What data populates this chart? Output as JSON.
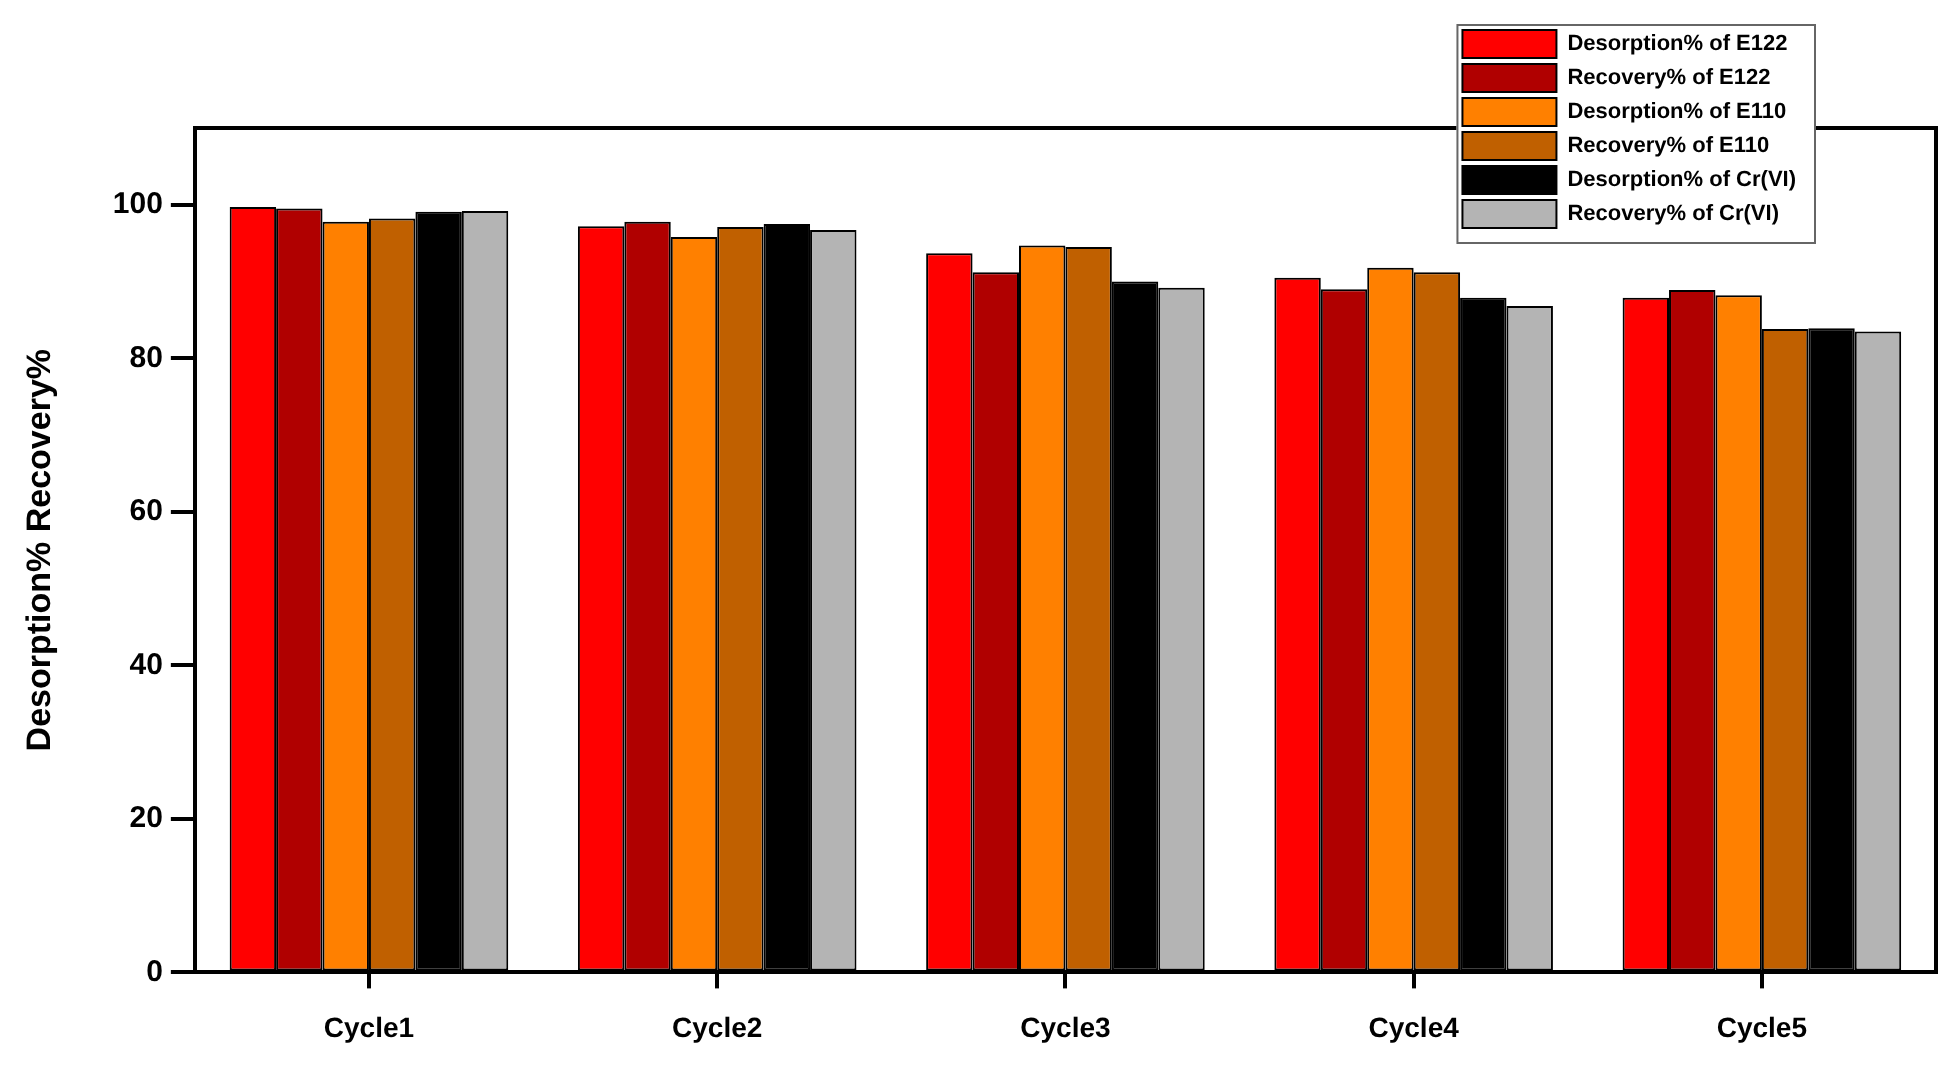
{
  "chart_data": {
    "type": "bar",
    "categories": [
      "Cycle1",
      "Cycle2",
      "Cycle3",
      "Cycle4",
      "Cycle5"
    ],
    "ylabel": "Desorption% Recovery%",
    "ylim": [
      0,
      110
    ],
    "yticks": [
      0,
      20,
      40,
      60,
      80,
      100
    ],
    "legend": "top right",
    "series": [
      {
        "name": "Desorption% of E122",
        "color": "#ff0000",
        "values": [
          99.7,
          97.2,
          93.7,
          90.5,
          87.9
        ]
      },
      {
        "name": "Recovery% of E122",
        "color": "#b00000",
        "values": [
          99.5,
          97.8,
          91.2,
          89.0,
          88.9
        ]
      },
      {
        "name": "Desorption% of E110",
        "color": "#ff8000",
        "values": [
          97.8,
          95.8,
          94.7,
          91.8,
          88.2
        ]
      },
      {
        "name": "Recovery% of E110",
        "color": "#c06000",
        "values": [
          98.2,
          97.1,
          94.5,
          91.2,
          83.8
        ]
      },
      {
        "name": "Desorption% of Cr(VI)",
        "color": "#000000",
        "values": [
          99.1,
          97.5,
          90.0,
          87.9,
          83.9
        ]
      },
      {
        "name": "Recovery% of Cr(VI)",
        "color": "#b4b4b4",
        "values": [
          99.2,
          96.7,
          89.2,
          86.8,
          83.5
        ]
      }
    ]
  }
}
